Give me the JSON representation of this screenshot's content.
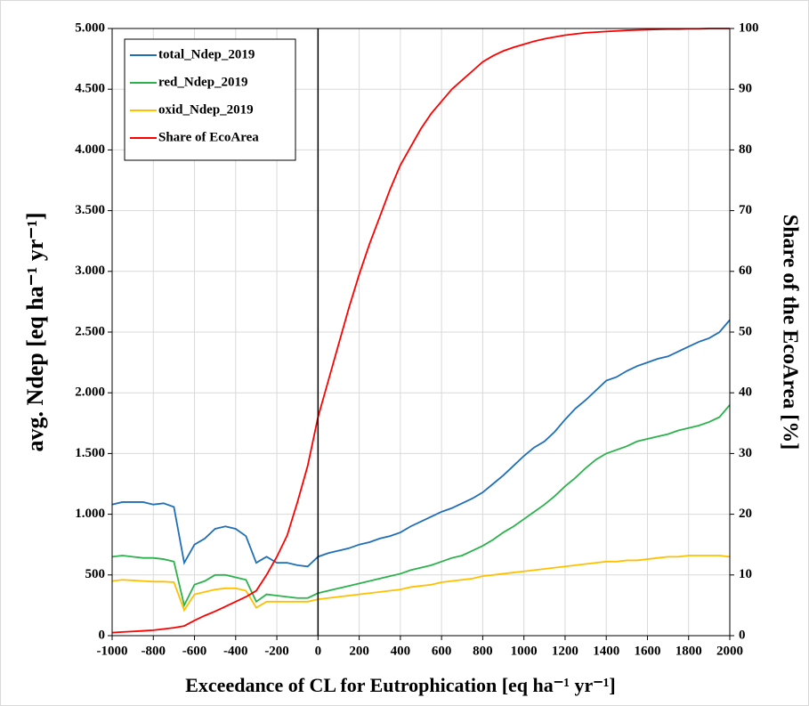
{
  "chart_data": {
    "type": "line",
    "x_label": "Exceedance of CL for Eutrophication [eq ha⁻¹ yr⁻¹]",
    "y_label": "avg. Ndep [eq ha⁻¹ yr⁻¹]",
    "y2_label": "Share of the EcoArea [%]",
    "x": [
      -1000,
      -950,
      -900,
      -850,
      -800,
      -750,
      -700,
      -650,
      -600,
      -550,
      -500,
      -450,
      -400,
      -350,
      -300,
      -250,
      -200,
      -150,
      -100,
      -50,
      0,
      50,
      100,
      150,
      200,
      250,
      300,
      350,
      400,
      450,
      500,
      550,
      600,
      650,
      700,
      750,
      800,
      850,
      900,
      950,
      1000,
      1050,
      1100,
      1150,
      1200,
      1250,
      1300,
      1350,
      1400,
      1450,
      1500,
      1550,
      1600,
      1650,
      1700,
      1750,
      1800,
      1850,
      1900,
      1950,
      2000
    ],
    "series": [
      {
        "name": "total_Ndep_2019",
        "color": "#1f6fb8",
        "values": [
          1080,
          1100,
          1100,
          1100,
          1080,
          1090,
          1060,
          600,
          750,
          800,
          880,
          900,
          880,
          820,
          600,
          650,
          600,
          600,
          580,
          570,
          650,
          680,
          700,
          720,
          750,
          770,
          800,
          820,
          850,
          900,
          940,
          980,
          1020,
          1050,
          1090,
          1130,
          1180,
          1250,
          1320,
          1400,
          1480,
          1550,
          1600,
          1680,
          1780,
          1870,
          1940,
          2020,
          2100,
          2130,
          2180,
          2220,
          2250,
          2280,
          2300,
          2340,
          2380,
          2420,
          2450,
          2500,
          2600
        ]
      },
      {
        "name": "red_Ndep_2019",
        "color": "#2bb24c",
        "values": [
          650,
          660,
          650,
          640,
          640,
          630,
          610,
          250,
          420,
          450,
          500,
          500,
          480,
          460,
          280,
          340,
          330,
          320,
          310,
          310,
          350,
          370,
          390,
          410,
          430,
          450,
          470,
          490,
          510,
          540,
          560,
          580,
          610,
          640,
          660,
          700,
          740,
          790,
          850,
          900,
          960,
          1020,
          1080,
          1150,
          1230,
          1300,
          1380,
          1450,
          1500,
          1530,
          1560,
          1600,
          1620,
          1640,
          1660,
          1690,
          1710,
          1730,
          1760,
          1800,
          1900
        ]
      },
      {
        "name": "oxid_Ndep_2019",
        "color": "#ffc000",
        "values": [
          450,
          460,
          455,
          450,
          445,
          445,
          440,
          210,
          340,
          360,
          380,
          390,
          390,
          370,
          230,
          280,
          280,
          280,
          280,
          280,
          300,
          310,
          320,
          330,
          340,
          350,
          360,
          370,
          380,
          400,
          410,
          420,
          440,
          450,
          460,
          470,
          490,
          500,
          510,
          520,
          530,
          540,
          550,
          560,
          570,
          580,
          590,
          600,
          610,
          610,
          620,
          620,
          630,
          640,
          650,
          650,
          660,
          660,
          660,
          660,
          650
        ]
      },
      {
        "name": "Share of EcoArea",
        "color": "#ff0000",
        "axis": "y2",
        "values": [
          0.5,
          0.6,
          0.7,
          0.8,
          0.9,
          1.1,
          1.3,
          1.6,
          2.5,
          3.3,
          4.0,
          4.8,
          5.6,
          6.4,
          7.4,
          10.0,
          13.0,
          16.5,
          22,
          28,
          36,
          42,
          48,
          54,
          59.5,
          64.5,
          69,
          73.5,
          77.5,
          80.5,
          83.5,
          86,
          88,
          90,
          91.5,
          93,
          94.5,
          95.5,
          96.3,
          96.9,
          97.4,
          97.9,
          98.3,
          98.6,
          98.9,
          99.1,
          99.3,
          99.4,
          99.5,
          99.6,
          99.7,
          99.75,
          99.8,
          99.85,
          99.9,
          99.9,
          99.95,
          99.95,
          100,
          100,
          100
        ]
      }
    ],
    "xlim": [
      -1000,
      2000
    ],
    "xticks": [
      -1000,
      -800,
      -600,
      -400,
      -200,
      0,
      200,
      400,
      600,
      800,
      1000,
      1200,
      1400,
      1600,
      1800,
      2000
    ],
    "ylim": [
      0,
      5000
    ],
    "yticks": [
      0,
      500,
      {
        "value": 1000,
        "label": "1.000"
      },
      {
        "value": 1500,
        "label": "1.500"
      },
      {
        "value": 2000,
        "label": "2.000"
      },
      {
        "value": 2500,
        "label": "2.500"
      },
      {
        "value": 3000,
        "label": "3.000"
      },
      {
        "value": 3500,
        "label": "3.500"
      },
      {
        "value": 4000,
        "label": "4.000"
      },
      {
        "value": 4500,
        "label": "4.500"
      },
      {
        "value": 5000,
        "label": "5.000"
      }
    ],
    "y2lim": [
      0,
      100
    ],
    "y2ticks": [
      0,
      10,
      20,
      30,
      40,
      50,
      60,
      70,
      80,
      90,
      100
    ],
    "reference_line_x": 0,
    "grid": true,
    "legend": "upper left"
  }
}
